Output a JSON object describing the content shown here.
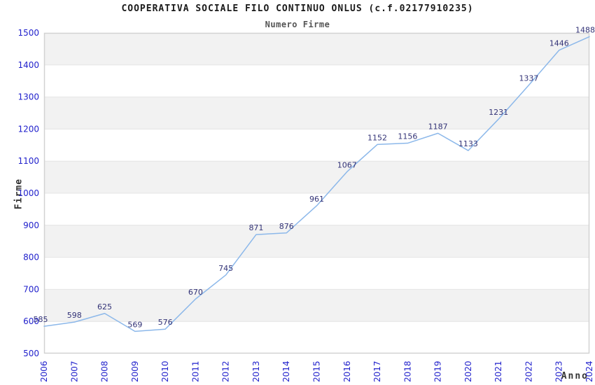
{
  "page": {
    "title": "COOPERATIVA SOCIALE FILO CONTINUO ONLUS (c.f.02177910235)",
    "subtitle": "Numero Firme"
  },
  "chart_data": {
    "type": "line",
    "title": "COOPERATIVA SOCIALE FILO CONTINUO ONLUS (c.f.02177910235)",
    "subtitle": "Numero Firme",
    "xlabel": "Anno",
    "ylabel": "Firme",
    "x": [
      2006,
      2007,
      2008,
      2009,
      2010,
      2011,
      2012,
      2013,
      2014,
      2015,
      2016,
      2017,
      2018,
      2019,
      2020,
      2021,
      2022,
      2023,
      2024
    ],
    "series": [
      {
        "name": "Numero Firme",
        "values": [
          585,
          598,
          625,
          569,
          576,
          670,
          745,
          871,
          876,
          961,
          1067,
          1152,
          1156,
          1187,
          1133,
          1231,
          1337,
          1446,
          1488
        ]
      }
    ],
    "ylim": [
      500,
      1500
    ],
    "ytick_step": 100,
    "grid": "horizontal",
    "legend": "none",
    "point_labels": "values shown above each point",
    "colors": {
      "line": "#8cb8ea",
      "tick_label": "#2222cc",
      "point_label": "#333377",
      "band": "#f2f2f2",
      "gridline": "#e4e4e4",
      "plot_border": "#d2d2d2",
      "title": "#1a1a1a",
      "subtitle": "#555555",
      "axis_title": "#333333"
    }
  }
}
